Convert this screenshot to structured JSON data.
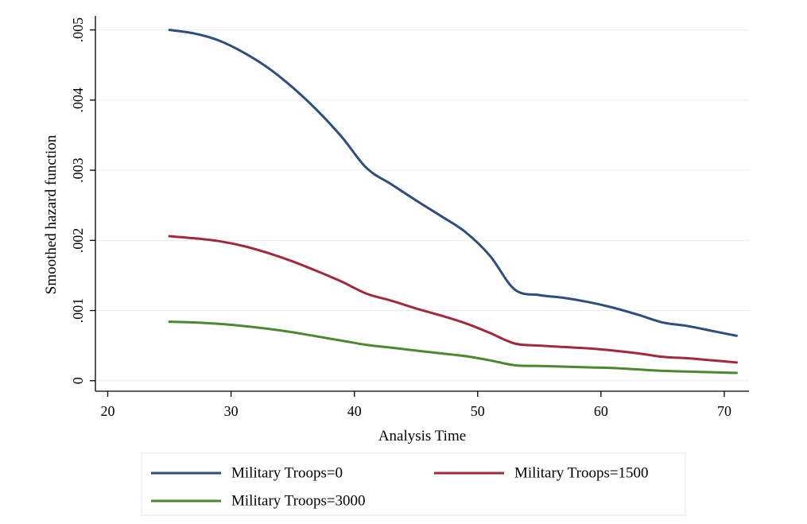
{
  "chart_data": {
    "type": "line",
    "xlabel": "Analysis Time",
    "ylabel": "Smoothed hazard function",
    "xlim": [
      19,
      72
    ],
    "ylim": [
      -0.00015,
      0.0052
    ],
    "x_ticks": [
      20,
      30,
      40,
      50,
      60,
      70
    ],
    "x_tick_labels": [
      "20",
      "30",
      "40",
      "50",
      "60",
      "70"
    ],
    "y_ticks": [
      0,
      0.001,
      0.002,
      0.003,
      0.004,
      0.005
    ],
    "y_tick_labels": [
      "0",
      ".001",
      ".002",
      ".003",
      ".004",
      ".005"
    ],
    "grid": true,
    "legend_position": "bottom",
    "series": [
      {
        "name": "Military Troops=0",
        "color": "#2f4d7e",
        "x": [
          25,
          27,
          29,
          31,
          33,
          35,
          37,
          39,
          41,
          43,
          45,
          47,
          49,
          51,
          53,
          55,
          57,
          59,
          61,
          63,
          65,
          67,
          69,
          71
        ],
        "y": [
          0.005,
          0.00495,
          0.00485,
          0.00468,
          0.00446,
          0.00418,
          0.00385,
          0.00347,
          0.00303,
          0.0028,
          0.00257,
          0.00235,
          0.00212,
          0.00178,
          0.0013,
          0.00122,
          0.00118,
          0.00112,
          0.00104,
          0.00094,
          0.00083,
          0.00078,
          0.00071,
          0.00064
        ]
      },
      {
        "name": "Military Troops=1500",
        "color": "#a3283c",
        "x": [
          25,
          27,
          29,
          31,
          33,
          35,
          37,
          39,
          41,
          43,
          45,
          47,
          49,
          51,
          53,
          55,
          57,
          59,
          61,
          63,
          65,
          67,
          69,
          71
        ],
        "y": [
          0.00206,
          0.00203,
          0.00199,
          0.00192,
          0.00182,
          0.0017,
          0.00156,
          0.00141,
          0.00124,
          0.00114,
          0.00103,
          0.00093,
          0.00082,
          0.00068,
          0.00053,
          0.0005,
          0.00048,
          0.00046,
          0.00043,
          0.00039,
          0.00034,
          0.00032,
          0.00029,
          0.00026
        ]
      },
      {
        "name": "Military Troops=3000",
        "color": "#4a8a2e",
        "x": [
          25,
          27,
          29,
          31,
          33,
          35,
          37,
          39,
          41,
          43,
          45,
          47,
          49,
          51,
          53,
          55,
          57,
          59,
          61,
          63,
          65,
          67,
          69,
          71
        ],
        "y": [
          0.00084,
          0.00083,
          0.00081,
          0.00078,
          0.00074,
          0.00069,
          0.00063,
          0.00057,
          0.00051,
          0.00047,
          0.00043,
          0.00039,
          0.00035,
          0.00029,
          0.00022,
          0.00021,
          0.0002,
          0.00019,
          0.00018,
          0.00016,
          0.00014,
          0.00013,
          0.00012,
          0.00011
        ]
      }
    ]
  }
}
